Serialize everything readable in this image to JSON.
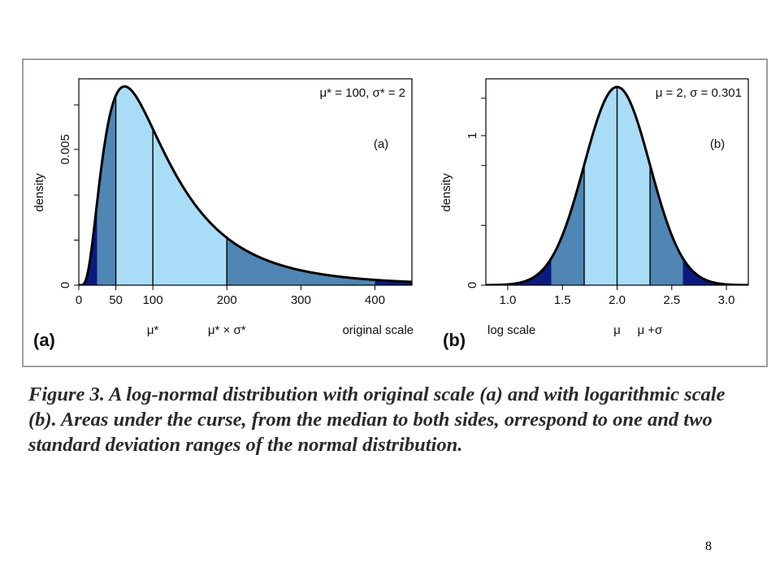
{
  "figure": {
    "caption": "Figure 3. A log-normal distribution with original scale (a) and with logarithmic scale (b). Areas under the curse, from the median to both sides, orrespond to one and two standard deviation ranges of the normal distribution.",
    "page_number": "8"
  },
  "colors": {
    "inner_band": "#a9dcf7",
    "middle_band": "#4f86b4",
    "outer_band": "#0b1a7e",
    "curve": "#000000",
    "panel_border": "#9e9e9e"
  },
  "chart_data": [
    {
      "type": "area",
      "panel_label": "(a)",
      "annotation": "μ* = 100,  σ* = 2",
      "panel_tag": "(a)",
      "xlabel": "original scale",
      "ylabel": "density",
      "xlim": [
        0,
        450
      ],
      "ylim": [
        0,
        0.0076
      ],
      "x_ticks": [
        {
          "value": 0,
          "label": "0"
        },
        {
          "value": 50,
          "label": "50"
        },
        {
          "value": 100,
          "label": "100"
        },
        {
          "value": 200,
          "label": "200"
        },
        {
          "value": 300,
          "label": "300"
        },
        {
          "value": 400,
          "label": "400"
        }
      ],
      "y_ticks": [
        {
          "value": 0,
          "label": "0"
        },
        {
          "value": 0.005,
          "label": "0.005"
        }
      ],
      "y_minor_ticks": [
        0.00166,
        0.00332,
        0.00664
      ],
      "x_sublabels": [
        {
          "value": 100,
          "label": "μ*"
        },
        {
          "value": 200,
          "label": "μ* × σ*"
        }
      ],
      "distribution": {
        "family": "log-normal",
        "median": 100,
        "multiplicative_sd": 2
      },
      "band_bounds": [
        25,
        50,
        100,
        200,
        400
      ],
      "marker_lines": [
        50,
        100,
        200
      ]
    },
    {
      "type": "area",
      "panel_label": "(b)",
      "annotation": "μ = 2,  σ = 0.301",
      "panel_tag": "(b)",
      "xlabel": "log scale",
      "ylabel": "density",
      "xlim": [
        0.8,
        3.2
      ],
      "ylim": [
        0,
        1.38
      ],
      "x_ticks": [
        {
          "value": 1.0,
          "label": "1.0"
        },
        {
          "value": 1.5,
          "label": "1.5"
        },
        {
          "value": 2.0,
          "label": "2.0"
        },
        {
          "value": 2.5,
          "label": "2.5"
        },
        {
          "value": 3.0,
          "label": "3.0"
        }
      ],
      "y_ticks": [
        {
          "value": 0,
          "label": "0"
        },
        {
          "value": 1,
          "label": "1"
        }
      ],
      "y_minor_ticks": [
        0.4,
        0.8,
        1.25
      ],
      "x_sublabels": [
        {
          "value": 2.0,
          "label": "μ"
        },
        {
          "value": 2.3,
          "label": "μ +σ"
        }
      ],
      "distribution": {
        "family": "normal",
        "mean": 2,
        "sd": 0.301
      },
      "band_bounds": [
        1.398,
        1.699,
        2.0,
        2.301,
        2.602
      ],
      "marker_lines": [
        1.699,
        2.0,
        2.301
      ]
    }
  ]
}
